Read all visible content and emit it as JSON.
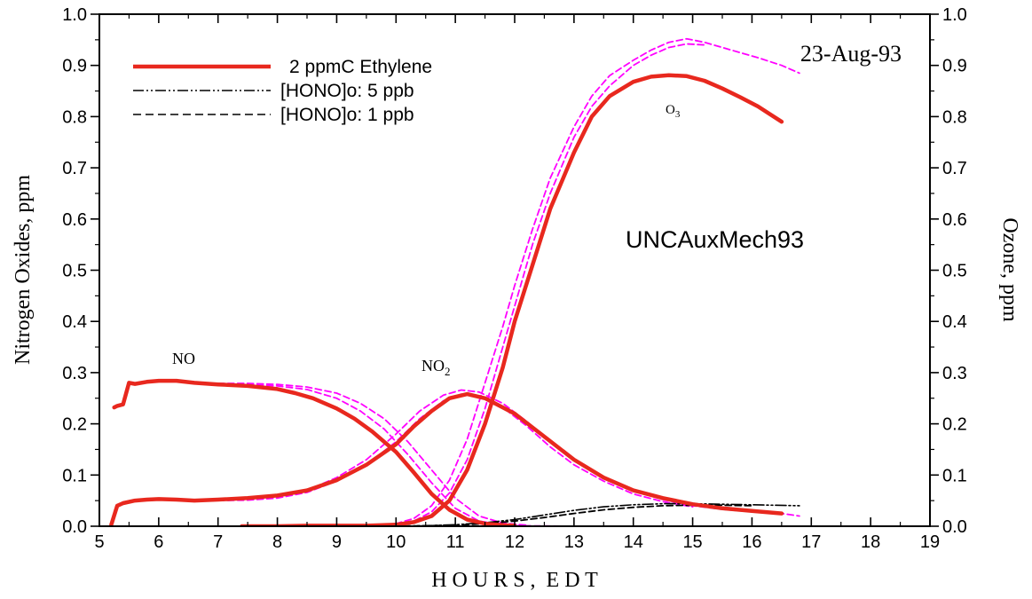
{
  "chart_data": {
    "type": "line",
    "title": "",
    "date_label": "23-Aug-93",
    "model_label": "UNCAuxMech93",
    "xlabel": "H O U R S ,  E D T",
    "ylabel_left": "Nitrogen Oxides, ppm",
    "ylabel_right": "Ozone, ppm",
    "xlim": [
      5,
      19
    ],
    "ylim": [
      0,
      1.0
    ],
    "xticks": [
      "5",
      "6",
      "7",
      "8",
      "9",
      "10",
      "11",
      "12",
      "13",
      "14",
      "15",
      "16",
      "17",
      "18",
      "19"
    ],
    "yticks": [
      "0.0",
      "0.1",
      "0.2",
      "0.3",
      "0.4",
      "0.5",
      "0.6",
      "0.7",
      "0.8",
      "0.9",
      "1.0"
    ],
    "grid": false,
    "legend_position": "top-left",
    "legend": [
      {
        "label": "2 ppmC Ethylene",
        "style": "solid-thick",
        "color": "#000000"
      },
      {
        "label": "[HONO]o: 5 ppb",
        "style": "dash-dot-dot",
        "color": "#000000"
      },
      {
        "label": "[HONO]o: 1 ppb",
        "style": "dashed",
        "color": "#000000"
      }
    ],
    "annotations": {
      "no": "NO",
      "no2_base": "NO",
      "no2_sub": "2",
      "o3_base": "O",
      "o3_sub": "3"
    },
    "colors": {
      "observed": "#e8281e",
      "model": "#ff00ff",
      "hono": "#000000"
    },
    "series": [
      {
        "name": "NO (2 ppmC Ethylene)",
        "style": "solid-thick",
        "color": "#e8281e",
        "x": [
          5.25,
          5.3,
          5.4,
          5.5,
          5.6,
          5.8,
          6.0,
          6.3,
          6.6,
          7.0,
          7.5,
          8.0,
          8.3,
          8.6,
          9.0,
          9.3,
          9.6,
          10.0,
          10.3,
          10.6,
          10.9,
          11.2,
          11.5,
          11.8,
          12.0
        ],
        "y": [
          0.232,
          0.235,
          0.238,
          0.28,
          0.278,
          0.282,
          0.284,
          0.284,
          0.28,
          0.277,
          0.274,
          0.268,
          0.26,
          0.25,
          0.23,
          0.21,
          0.185,
          0.145,
          0.105,
          0.063,
          0.032,
          0.013,
          0.005,
          0.002,
          0.001
        ]
      },
      {
        "name": "NO2 (2 ppmC Ethylene)",
        "style": "solid-thick",
        "color": "#e8281e",
        "x": [
          5.2,
          5.3,
          5.4,
          5.6,
          5.8,
          6.0,
          6.3,
          6.6,
          7.0,
          7.5,
          8.0,
          8.5,
          9.0,
          9.5,
          10.0,
          10.3,
          10.6,
          10.9,
          11.2,
          11.5,
          12.0,
          12.5,
          13.0,
          13.5,
          14.0,
          14.5,
          15.0,
          15.5,
          16.0,
          16.5
        ],
        "y": [
          0.003,
          0.04,
          0.045,
          0.05,
          0.052,
          0.053,
          0.052,
          0.05,
          0.052,
          0.055,
          0.06,
          0.07,
          0.09,
          0.12,
          0.16,
          0.195,
          0.225,
          0.25,
          0.258,
          0.25,
          0.22,
          0.175,
          0.13,
          0.095,
          0.07,
          0.055,
          0.043,
          0.035,
          0.03,
          0.025
        ]
      },
      {
        "name": "O3 (2 ppmC Ethylene)",
        "style": "solid-thick",
        "color": "#e8281e",
        "x": [
          7.4,
          8.0,
          8.5,
          9.0,
          9.5,
          10.0,
          10.3,
          10.6,
          10.9,
          11.2,
          11.5,
          11.8,
          12.0,
          12.3,
          12.6,
          13.0,
          13.3,
          13.6,
          14.0,
          14.3,
          14.6,
          14.9,
          15.2,
          15.5,
          15.8,
          16.1,
          16.5
        ],
        "y": [
          0.0,
          0.0,
          0.001,
          0.001,
          0.001,
          0.003,
          0.008,
          0.02,
          0.05,
          0.11,
          0.2,
          0.31,
          0.4,
          0.51,
          0.62,
          0.73,
          0.8,
          0.84,
          0.868,
          0.878,
          0.881,
          0.879,
          0.87,
          0.855,
          0.838,
          0.82,
          0.79
        ]
      },
      {
        "name": "O3 model A",
        "style": "dashed",
        "color": "#ff00ff",
        "x": [
          9.5,
          10.0,
          10.3,
          10.6,
          10.9,
          11.2,
          11.5,
          11.8,
          12.0,
          12.3,
          12.6,
          13.0,
          13.3,
          13.6,
          14.0,
          14.3,
          14.6,
          14.9,
          15.2,
          15.5,
          15.8,
          16.1,
          16.5,
          16.8
        ],
        "y": [
          0.001,
          0.005,
          0.015,
          0.04,
          0.09,
          0.17,
          0.28,
          0.39,
          0.47,
          0.58,
          0.68,
          0.78,
          0.84,
          0.88,
          0.91,
          0.93,
          0.945,
          0.952,
          0.945,
          0.935,
          0.925,
          0.915,
          0.9,
          0.885
        ]
      },
      {
        "name": "O3 model B",
        "style": "dashed",
        "color": "#ff00ff",
        "x": [
          9.5,
          10.0,
          10.3,
          10.6,
          10.9,
          11.2,
          11.5,
          11.8,
          12.0,
          12.3,
          12.6,
          13.0,
          13.3,
          13.6,
          14.0,
          14.3,
          14.6,
          14.9,
          15.2
        ],
        "y": [
          0.001,
          0.004,
          0.01,
          0.028,
          0.065,
          0.13,
          0.23,
          0.35,
          0.43,
          0.55,
          0.65,
          0.76,
          0.82,
          0.86,
          0.9,
          0.92,
          0.935,
          0.942,
          0.94
        ]
      },
      {
        "name": "NO model A",
        "style": "dashed",
        "color": "#ff00ff",
        "x": [
          7.0,
          7.5,
          8.0,
          8.5,
          9.0,
          9.4,
          9.8,
          10.2,
          10.6,
          11.0,
          11.4,
          11.8,
          12.2
        ],
        "y": [
          0.279,
          0.279,
          0.277,
          0.272,
          0.26,
          0.24,
          0.21,
          0.165,
          0.11,
          0.055,
          0.02,
          0.006,
          0.002
        ]
      },
      {
        "name": "NO model B",
        "style": "dashed",
        "color": "#ff00ff",
        "x": [
          7.0,
          7.5,
          8.0,
          8.5,
          9.0,
          9.4,
          9.8,
          10.2,
          10.6,
          11.0,
          11.4,
          11.8,
          12.2
        ],
        "y": [
          0.277,
          0.277,
          0.274,
          0.267,
          0.25,
          0.225,
          0.19,
          0.14,
          0.085,
          0.035,
          0.01,
          0.003,
          0.001
        ]
      },
      {
        "name": "NO2 model A",
        "style": "dashed",
        "color": "#ff00ff",
        "x": [
          7.0,
          7.5,
          8.0,
          8.5,
          9.0,
          9.5,
          10.0,
          10.4,
          10.8,
          11.1,
          11.4,
          11.8,
          12.2,
          12.6,
          13.0,
          13.5,
          14.0,
          14.5,
          15.0,
          15.5,
          16.0,
          16.5,
          16.8
        ],
        "y": [
          0.05,
          0.052,
          0.058,
          0.07,
          0.095,
          0.13,
          0.18,
          0.225,
          0.256,
          0.266,
          0.262,
          0.24,
          0.205,
          0.165,
          0.13,
          0.095,
          0.07,
          0.052,
          0.04,
          0.033,
          0.028,
          0.025,
          0.02
        ]
      },
      {
        "name": "NO2 model B",
        "style": "dashed",
        "color": "#ff00ff",
        "x": [
          7.0,
          7.5,
          8.0,
          8.5,
          9.0,
          9.5,
          10.0,
          10.4,
          10.8,
          11.1,
          11.4,
          11.8,
          12.2,
          12.6,
          13.0,
          13.5,
          14.0,
          14.5,
          15.0
        ],
        "y": [
          0.05,
          0.051,
          0.055,
          0.066,
          0.088,
          0.12,
          0.165,
          0.21,
          0.245,
          0.258,
          0.255,
          0.232,
          0.196,
          0.155,
          0.12,
          0.088,
          0.063,
          0.048,
          0.038
        ]
      },
      {
        "name": "NO model tail",
        "style": "dashed",
        "color": "#ff00ff",
        "x": [
          12.0,
          13.0,
          14.0,
          15.0,
          16.0,
          16.8
        ],
        "y": [
          0.001,
          0.0,
          0.0,
          0.0,
          0.0,
          0.0
        ]
      },
      {
        "name": "HONO 5 ppb",
        "style": "dash-dot-dot",
        "color": "#000000",
        "x": [
          5.2,
          6.0,
          7.0,
          8.0,
          9.0,
          10.0,
          10.5,
          11.0,
          11.5,
          12.0,
          12.5,
          13.0,
          13.5,
          14.0,
          14.5,
          15.0,
          15.5,
          16.0,
          16.8
        ],
        "y": [
          0.0,
          0.0,
          0.0,
          0.0,
          0.0,
          0.0,
          0.001,
          0.003,
          0.007,
          0.013,
          0.022,
          0.031,
          0.038,
          0.042,
          0.044,
          0.044,
          0.043,
          0.042,
          0.04
        ]
      },
      {
        "name": "HONO 1 ppb",
        "style": "dashed",
        "color": "#000000",
        "x": [
          5.2,
          6.0,
          7.0,
          8.0,
          9.0,
          10.0,
          10.5,
          11.0,
          11.5,
          12.0,
          12.5,
          13.0,
          13.5,
          14.0,
          14.5,
          15.0,
          15.5,
          16.0
        ],
        "y": [
          0.0,
          0.0,
          0.0,
          0.0,
          0.0,
          0.0,
          0.001,
          0.002,
          0.005,
          0.01,
          0.017,
          0.025,
          0.032,
          0.037,
          0.04,
          0.041,
          0.041,
          0.04
        ]
      }
    ]
  }
}
